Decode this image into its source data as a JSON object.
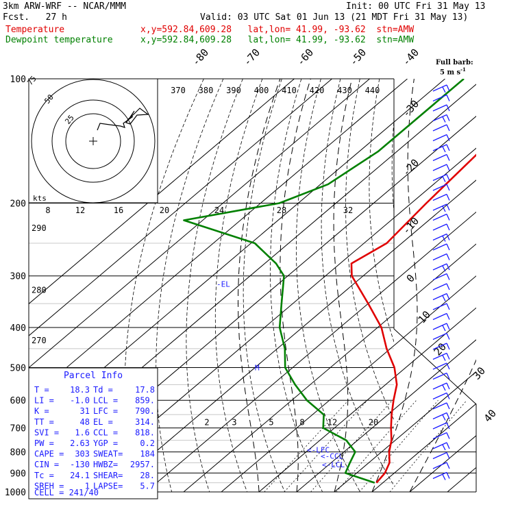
{
  "header": {
    "model": "3km ARW-WRF -- NCAR/MMM",
    "init": "Init: 00 UTC Fri 31 May 13",
    "fcst": "Fcst.   27 h",
    "valid": "Valid: 03 UTC Sat 01 Jun 13 (21 MDT Fri 31 May 13)",
    "temp_label": "Temperature",
    "temp_loc": "x,y=592.84,609.28   lat,lon= 41.99, -93.62  stn=AMW",
    "dew_label": "Dewpoint temperature",
    "dew_loc": "x,y=592.84,609.28   lat,lon= 41.99, -93.62  stn=AMW",
    "barb_title": "Full barb:",
    "barb_unit": "5 m s",
    "barb_exp": "-1"
  },
  "colors": {
    "temperature": "#e00000",
    "dewpoint": "#008000",
    "barbs": "#1a1aff"
  },
  "chart_data": {
    "type": "skew-t",
    "pressure_levels": [
      100,
      200,
      300,
      400,
      500,
      600,
      700,
      800,
      900,
      1000
    ],
    "pressure_labels": [
      "100",
      "200",
      "300",
      "400",
      "500",
      "600",
      "700",
      "800",
      "900",
      "1000"
    ],
    "ylim_hpa": [
      1000,
      100
    ],
    "isotherm_labels": [
      {
        "t": -80,
        "label": "-80"
      },
      {
        "t": -70,
        "label": "-70"
      },
      {
        "t": -60,
        "label": "-60"
      },
      {
        "t": -50,
        "label": "-50"
      },
      {
        "t": -40,
        "label": "-40"
      },
      {
        "t": -30,
        "label": "-30"
      },
      {
        "t": -20,
        "label": "-20"
      },
      {
        "t": -10,
        "label": "-10"
      },
      {
        "t": 0,
        "label": "0"
      },
      {
        "t": 10,
        "label": "10"
      },
      {
        "t": 20,
        "label": "20"
      },
      {
        "t": 30,
        "label": "30"
      },
      {
        "t": 40,
        "label": "40"
      }
    ],
    "theta_e_labels": [
      "370",
      "380",
      "390",
      "400",
      "410",
      "420",
      "430",
      "440"
    ],
    "theta_labels": [
      {
        "p": 230,
        "label": "290"
      },
      {
        "p": 325,
        "label": "280"
      },
      {
        "p": 430,
        "label": "270"
      }
    ],
    "mixing_ratio_labels": [
      "2",
      "3",
      "5",
      "8",
      "12",
      "20"
    ],
    "temperature_series": {
      "name": "Temperature",
      "points": [
        [
          100,
          -55
        ],
        [
          150,
          -58
        ],
        [
          200,
          -56
        ],
        [
          250,
          -54
        ],
        [
          280,
          -57
        ],
        [
          300,
          -53
        ],
        [
          350,
          -40
        ],
        [
          400,
          -29
        ],
        [
          450,
          -21
        ],
        [
          500,
          -13
        ],
        [
          550,
          -7
        ],
        [
          600,
          -3
        ],
        [
          650,
          1
        ],
        [
          700,
          5
        ],
        [
          750,
          9
        ],
        [
          800,
          12
        ],
        [
          850,
          15.5
        ],
        [
          900,
          17.5
        ],
        [
          950,
          18.3
        ]
      ]
    },
    "dewpoint_series": {
      "name": "Dewpoint temperature",
      "points": [
        [
          100,
          -85
        ],
        [
          150,
          -85
        ],
        [
          180,
          -88
        ],
        [
          200,
          -95
        ],
        [
          220,
          -115
        ],
        [
          250,
          -89
        ],
        [
          280,
          -77
        ],
        [
          300,
          -71
        ],
        [
          350,
          -63
        ],
        [
          400,
          -56
        ],
        [
          450,
          -48
        ],
        [
          500,
          -42
        ],
        [
          550,
          -34
        ],
        [
          600,
          -26
        ],
        [
          650,
          -17
        ],
        [
          700,
          -13
        ],
        [
          750,
          -3
        ],
        [
          800,
          3
        ],
        [
          850,
          5
        ],
        [
          900,
          7
        ],
        [
          950,
          17.8
        ]
      ]
    },
    "annotations": [
      {
        "text": "-EL",
        "p": 314
      },
      {
        "text": "M",
        "p": 500
      },
      {
        "text": "<-LFC",
        "p": 790
      },
      {
        "text": "<-CCL",
        "p": 818
      },
      {
        "text": "<-LCL",
        "p": 859
      }
    ],
    "hodograph": {
      "ring_labels": [
        "75",
        "50",
        "25"
      ],
      "speed_labels": [
        "8",
        "12",
        "16",
        "20",
        "24",
        "28",
        "32"
      ],
      "speed_unit": "kts"
    },
    "wind_barbs_count": 40
  },
  "parcel": {
    "title": "Parcel Info",
    "rows": [
      [
        "T  =",
        "18.3",
        "Td =",
        "17.8"
      ],
      [
        "LI =",
        "-1.0",
        "LCL =",
        "859."
      ],
      [
        "K  =",
        "31",
        "LFC =",
        "790."
      ],
      [
        "TT =",
        "48",
        "EL  =",
        "314."
      ],
      [
        "SVI =",
        "1.6",
        "CCL =",
        "818."
      ],
      [
        "PW =",
        "2.63",
        "YGP =",
        "0.2"
      ],
      [
        "CAPE =",
        "303",
        "SWEAT=",
        "184"
      ],
      [
        "CIN =",
        "-130",
        "HWBZ=",
        "2957."
      ],
      [
        "Tc =",
        "24.1",
        "SHEAR=",
        "28."
      ],
      [
        "SREH =",
        "1",
        "LAPSE=",
        "5.7"
      ]
    ],
    "cell": "CELL = 241/40"
  }
}
